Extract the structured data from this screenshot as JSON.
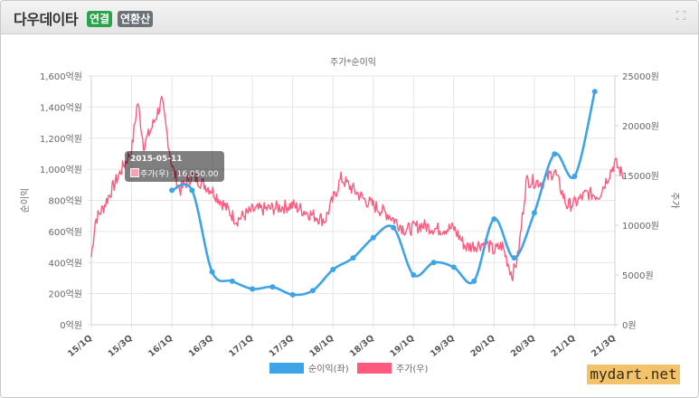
{
  "header": {
    "title": "다우데이타",
    "badge_consolidated": "연결",
    "badge_annual": "연환산",
    "expand_icon": "expand-icon"
  },
  "tooltip": {
    "date": "2015-05-11",
    "series": "주가(우)",
    "value": "16,050.00",
    "text": "주가(우) : 16,050.00"
  },
  "watermark": "mydart.net",
  "colors": {
    "net_income": "#3ea4e8",
    "price": "#ff5a7e",
    "badge_green": "#2aa44b",
    "badge_gray": "#6c7178"
  },
  "chart_data": {
    "type": "line",
    "title": "주가*순이익",
    "ylabel": "순이익",
    "ylabel_right": "주가",
    "ylim": [
      0,
      1600
    ],
    "ylim_right": [
      0,
      25000
    ],
    "yticks": [
      "0억원",
      "200억원",
      "400억원",
      "600억원",
      "800억원",
      "1,000억원",
      "1,200억원",
      "1,400억원",
      "1,600억원"
    ],
    "yticks_right": [
      "0원",
      "5000원",
      "10000원",
      "15000원",
      "20000원",
      "25000원"
    ],
    "categories": [
      "15/1Q",
      "15/3Q",
      "16/1Q",
      "16/3Q",
      "17/1Q",
      "17/3Q",
      "18/1Q",
      "18/3Q",
      "19/1Q",
      "19/3Q",
      "20/1Q",
      "20/3Q",
      "21/1Q",
      "21/3Q"
    ],
    "legend_position": "bottom",
    "grid": true,
    "series": [
      {
        "name": "순이익(좌)",
        "axis": "left",
        "color": "#3ea4e8",
        "points": [
          {
            "t": 2.0,
            "v": 865
          },
          {
            "t": 2.5,
            "v": 865
          },
          {
            "t": 3.0,
            "v": 340
          },
          {
            "t": 3.5,
            "v": 280
          },
          {
            "t": 4.0,
            "v": 230
          },
          {
            "t": 4.5,
            "v": 243
          },
          {
            "t": 5.0,
            "v": 193
          },
          {
            "t": 5.5,
            "v": 220
          },
          {
            "t": 6.0,
            "v": 355
          },
          {
            "t": 6.5,
            "v": 430
          },
          {
            "t": 7.0,
            "v": 560
          },
          {
            "t": 7.5,
            "v": 625
          },
          {
            "t": 8.0,
            "v": 320
          },
          {
            "t": 8.5,
            "v": 400
          },
          {
            "t": 9.0,
            "v": 370
          },
          {
            "t": 9.5,
            "v": 280
          },
          {
            "t": 10.0,
            "v": 680
          },
          {
            "t": 10.5,
            "v": 430
          },
          {
            "t": 11.0,
            "v": 720
          },
          {
            "t": 11.5,
            "v": 1098
          },
          {
            "t": 12.0,
            "v": 955
          },
          {
            "t": 12.5,
            "v": 1500
          }
        ]
      },
      {
        "name": "주가(우)",
        "axis": "right",
        "color": "#ff5a7e",
        "anchors": [
          [
            0.0,
            6800
          ],
          [
            0.1,
            10500
          ],
          [
            0.3,
            11800
          ],
          [
            0.5,
            13500
          ],
          [
            0.8,
            16000
          ],
          [
            1.0,
            17500
          ],
          [
            1.15,
            22500
          ],
          [
            1.3,
            18000
          ],
          [
            1.5,
            19800
          ],
          [
            1.75,
            22500
          ],
          [
            2.0,
            16050
          ],
          [
            2.2,
            13500
          ],
          [
            2.5,
            15000
          ],
          [
            3.0,
            13500
          ],
          [
            3.3,
            12000
          ],
          [
            3.6,
            10500
          ],
          [
            4.0,
            11500
          ],
          [
            4.5,
            11700
          ],
          [
            5.0,
            12000
          ],
          [
            5.5,
            11000
          ],
          [
            5.8,
            10500
          ],
          [
            6.2,
            14700
          ],
          [
            6.8,
            12500
          ],
          [
            7.4,
            11000
          ],
          [
            7.8,
            9500
          ],
          [
            8.2,
            10000
          ],
          [
            8.6,
            9600
          ],
          [
            9.0,
            9700
          ],
          [
            9.3,
            7800
          ],
          [
            9.8,
            8200
          ],
          [
            10.0,
            7400
          ],
          [
            10.2,
            8000
          ],
          [
            10.45,
            4900
          ],
          [
            10.6,
            7000
          ],
          [
            10.8,
            14500
          ],
          [
            11.2,
            14300
          ],
          [
            11.5,
            15500
          ],
          [
            11.8,
            12000
          ],
          [
            12.0,
            12200
          ],
          [
            12.3,
            13200
          ],
          [
            12.6,
            13000
          ],
          [
            13.0,
            16300
          ],
          [
            13.2,
            15000
          ]
        ]
      }
    ]
  }
}
